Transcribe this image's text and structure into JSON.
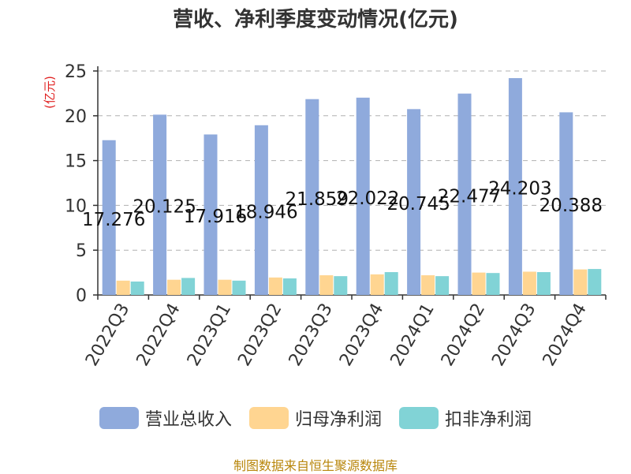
{
  "chart_data": {
    "type": "bar",
    "title": "营收、净利季度变动情况(亿元)",
    "ylabel": "(亿元)",
    "xlabel": "",
    "ylim": [
      0,
      25
    ],
    "yticks": [
      0,
      5,
      10,
      15,
      20,
      25
    ],
    "grid": true,
    "legend_position": "bottom",
    "categories": [
      "2022Q3",
      "2022Q4",
      "2023Q1",
      "2023Q2",
      "2023Q3",
      "2023Q4",
      "2024Q1",
      "2024Q2",
      "2024Q3",
      "2024Q4"
    ],
    "series": [
      {
        "name": "营业总收入",
        "color": "#8faadc",
        "values": [
          17.276,
          20.125,
          17.916,
          18.946,
          21.859,
          22.022,
          20.745,
          22.477,
          24.203,
          20.388
        ],
        "labels": [
          "17.276",
          "20.125",
          "17.916",
          "18.946",
          "21.859",
          "22.022",
          "20.745",
          "22.477",
          "24.203",
          "20.388"
        ]
      },
      {
        "name": "归母净利润",
        "color": "#ffd591",
        "values": [
          1.6,
          1.7,
          1.7,
          1.95,
          2.2,
          2.3,
          2.2,
          2.5,
          2.6,
          2.85
        ]
      },
      {
        "name": "扣非净利润",
        "color": "#81d3d6",
        "values": [
          1.5,
          1.9,
          1.6,
          1.85,
          2.1,
          2.55,
          2.1,
          2.45,
          2.55,
          2.9
        ]
      }
    ]
  },
  "footer": "制图数据来自恒生聚源数据库"
}
